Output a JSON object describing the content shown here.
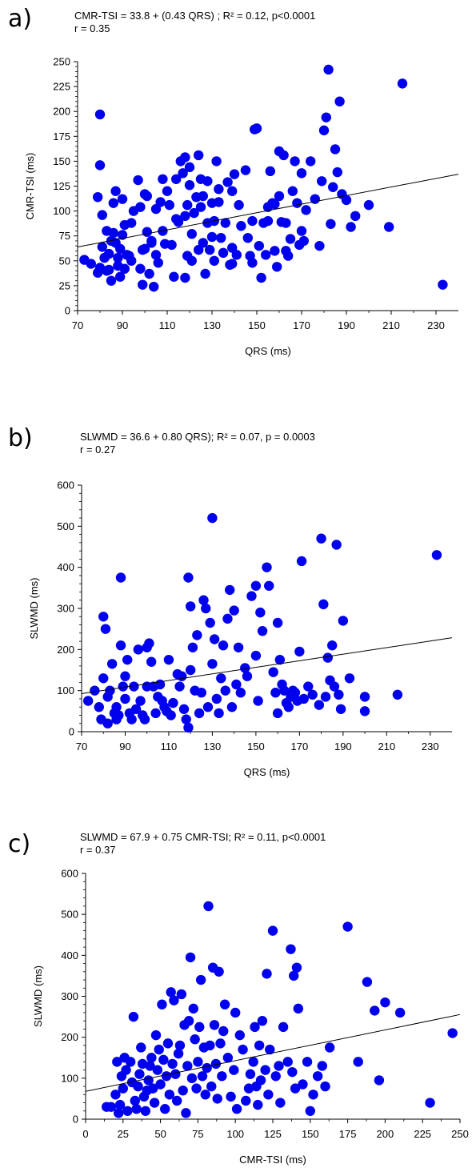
{
  "panels": [
    {
      "label": "a)",
      "equation": "CMR-TSI = 33.8 + (0.43 QRS) ; R² = 0.12, p<0.0001",
      "correlation": "r = 0.35"
    },
    {
      "label": "b)",
      "equation": "SLWMD = 36.6 + 0.80 QRS); R² = 0.07, p = 0.0003",
      "correlation": "r = 0.27"
    },
    {
      "label": "c)",
      "equation": "SLWMD = 67.9 + 0.75 CMR-TSI; R² = 0.11, p<0.0001",
      "correlation": "r = 0.37"
    }
  ],
  "chart_data": [
    {
      "type": "scatter",
      "xlabel": "QRS (ms)",
      "ylabel": "CMR-TSI  (ms)",
      "xlim": [
        70,
        240
      ],
      "ylim": [
        0,
        250
      ],
      "xticks": [
        70,
        90,
        110,
        130,
        150,
        170,
        190,
        210,
        230
      ],
      "yticks": [
        0,
        25,
        50,
        75,
        100,
        125,
        150,
        175,
        200,
        225,
        250
      ],
      "point_color": "#0000ee",
      "trendline": {
        "intercept": 33.8,
        "slope": 0.43,
        "x_from": 70,
        "x_to": 240
      },
      "series": [
        {
          "x": [
            73,
            76,
            79,
            80,
            80,
            81,
            81,
            82,
            83,
            83,
            84,
            85,
            86,
            86,
            87,
            87,
            88,
            89,
            89,
            90,
            90,
            91,
            91,
            92,
            93,
            94,
            95,
            97,
            98,
            99,
            99,
            100,
            100,
            101,
            101,
            102,
            103,
            104,
            105,
            105,
            106,
            107,
            108,
            109,
            110,
            111,
            112,
            113,
            114,
            115,
            116,
            117,
            118,
            118,
            119,
            119,
            120,
            120,
            121,
            121,
            122,
            123,
            124,
            124,
            125,
            126,
            126,
            127,
            128,
            128,
            129,
            130,
            130,
            131,
            131,
            132,
            133,
            134,
            135,
            136,
            137,
            138,
            139,
            139,
            140,
            141,
            142,
            143,
            145,
            146,
            147,
            148,
            149,
            150,
            151,
            152,
            153,
            154,
            155,
            156,
            157,
            158,
            158,
            159,
            160,
            160,
            161,
            162,
            163,
            164,
            165,
            166,
            167,
            168,
            169,
            170,
            171,
            172,
            174,
            176,
            178,
            179,
            180,
            181,
            182,
            183,
            184,
            185,
            186,
            187,
            188,
            190,
            192,
            194,
            200,
            209,
            215,
            233,
            79,
            80,
            84,
            85,
            88,
            94,
            98,
            103,
            108,
            114,
            118,
            125,
            133,
            139,
            148,
            155,
            163,
            170
          ],
          "y": [
            51,
            47,
            114,
            146,
            197,
            96,
            64,
            53,
            80,
            40,
            57,
            30,
            78,
            108,
            120,
            68,
            45,
            34,
            62,
            76,
            112,
            86,
            42,
            56,
            55,
            88,
            100,
            131,
            104,
            26,
            61,
            117,
            62,
            115,
            79,
            37,
            68,
            24,
            56,
            102,
            48,
            109,
            132,
            67,
            120,
            106,
            66,
            34,
            132,
            89,
            150,
            138,
            154,
            33,
            106,
            55,
            126,
            144,
            77,
            50,
            98,
            114,
            156,
            61,
            132,
            68,
            115,
            37,
            130,
            88,
            61,
            108,
            74,
            50,
            90,
            150,
            122,
            73,
            58,
            88,
            129,
            46,
            63,
            120,
            137,
            56,
            106,
            85,
            141,
            73,
            55,
            90,
            182,
            183,
            65,
            33,
            88,
            56,
            104,
            140,
            108,
            60,
            107,
            44,
            160,
            115,
            89,
            156,
            88,
            55,
            72,
            120,
            150,
            108,
            66,
            138,
            70,
            101,
            150,
            112,
            65,
            130,
            181,
            194,
            242,
            87,
            124,
            162,
            139,
            210,
            117,
            111,
            84,
            95,
            106,
            84,
            228,
            26,
            38,
            43,
            41,
            70,
            53,
            50,
            42,
            70,
            80,
            92,
            95,
            104,
            109,
            47,
            48,
            90,
            60,
            80
          ]
        }
      ]
    },
    {
      "type": "scatter",
      "xlabel": "QRS (ms)",
      "ylabel": "SLWMD (ms)",
      "xlim": [
        70,
        240
      ],
      "ylim": [
        0,
        600
      ],
      "xticks": [
        70,
        90,
        110,
        130,
        150,
        170,
        190,
        210,
        230
      ],
      "yticks": [
        0,
        100,
        200,
        300,
        400,
        500,
        600
      ],
      "point_color": "#0000ee",
      "trendline": {
        "intercept": 36.6,
        "slope": 0.8,
        "x_from": 70,
        "x_to": 240
      },
      "series": [
        {
          "x": [
            73,
            76,
            78,
            79,
            80,
            80,
            81,
            82,
            82,
            83,
            84,
            85,
            86,
            86,
            87,
            88,
            88,
            89,
            90,
            90,
            91,
            92,
            93,
            94,
            95,
            96,
            97,
            98,
            99,
            100,
            100,
            101,
            102,
            103,
            104,
            105,
            106,
            107,
            108,
            109,
            110,
            111,
            112,
            114,
            115,
            116,
            117,
            118,
            119,
            119,
            120,
            120,
            121,
            122,
            123,
            124,
            125,
            126,
            127,
            128,
            129,
            130,
            130,
            131,
            132,
            133,
            134,
            135,
            136,
            137,
            138,
            139,
            140,
            141,
            142,
            143,
            145,
            146,
            148,
            150,
            150,
            151,
            152,
            153,
            155,
            156,
            158,
            159,
            160,
            160,
            161,
            162,
            163,
            164,
            165,
            166,
            167,
            168,
            169,
            170,
            171,
            172,
            174,
            176,
            179,
            180,
            181,
            182,
            183,
            184,
            185,
            186,
            187,
            188,
            189,
            190,
            193,
            200,
            200,
            215,
            233
          ],
          "y": [
            75,
            100,
            60,
            30,
            280,
            130,
            250,
            85,
            20,
            100,
            165,
            45,
            30,
            60,
            40,
            210,
            375,
            110,
            135,
            80,
            175,
            45,
            30,
            110,
            55,
            200,
            75,
            40,
            30,
            205,
            110,
            215,
            170,
            110,
            45,
            85,
            115,
            75,
            60,
            50,
            175,
            40,
            70,
            140,
            110,
            135,
            55,
            30,
            375,
            10,
            305,
            150,
            205,
            100,
            235,
            45,
            95,
            320,
            300,
            60,
            265,
            165,
            520,
            225,
            80,
            45,
            130,
            210,
            100,
            275,
            345,
            60,
            295,
            115,
            205,
            95,
            155,
            135,
            330,
            355,
            185,
            75,
            290,
            245,
            400,
            355,
            145,
            95,
            265,
            45,
            175,
            115,
            100,
            70,
            60,
            85,
            100,
            95,
            75,
            195,
            415,
            80,
            110,
            90,
            65,
            470,
            310,
            85,
            180,
            125,
            210,
            110,
            455,
            90,
            55,
            270,
            130,
            85,
            50,
            90,
            430
          ]
        }
      ]
    },
    {
      "type": "scatter",
      "xlabel": "CMR-TSI (ms)",
      "ylabel": "SLWMD (ms)",
      "xlim": [
        0,
        250
      ],
      "ylim": [
        0,
        600
      ],
      "xticks": [
        0,
        25,
        50,
        75,
        100,
        125,
        150,
        175,
        200,
        225,
        250
      ],
      "yticks": [
        0,
        100,
        200,
        300,
        400,
        500,
        600
      ],
      "point_color": "#0000ee",
      "trendline": {
        "intercept": 67.9,
        "slope": 0.75,
        "x_from": 0,
        "x_to": 250
      },
      "series": [
        {
          "x": [
            14,
            17,
            20,
            21,
            22,
            23,
            24,
            25,
            26,
            27,
            28,
            30,
            31,
            32,
            33,
            34,
            35,
            36,
            37,
            38,
            39,
            40,
            41,
            42,
            43,
            44,
            45,
            46,
            47,
            48,
            49,
            50,
            51,
            52,
            53,
            54,
            55,
            56,
            57,
            58,
            59,
            60,
            61,
            62,
            63,
            64,
            65,
            66,
            67,
            68,
            69,
            70,
            71,
            72,
            73,
            74,
            75,
            76,
            77,
            78,
            79,
            80,
            81,
            82,
            83,
            84,
            85,
            86,
            87,
            88,
            89,
            90,
            91,
            92,
            93,
            95,
            97,
            99,
            100,
            101,
            103,
            105,
            107,
            109,
            110,
            112,
            113,
            114,
            115,
            116,
            117,
            118,
            120,
            121,
            122,
            123,
            125,
            127,
            129,
            130,
            132,
            135,
            137,
            138,
            139,
            140,
            141,
            142,
            145,
            148,
            150,
            152,
            155,
            158,
            160,
            163,
            175,
            182,
            188,
            193,
            196,
            200,
            210,
            230,
            245
          ],
          "y": [
            30,
            30,
            60,
            140,
            15,
            35,
            105,
            75,
            150,
            120,
            20,
            140,
            90,
            250,
            45,
            25,
            80,
            110,
            175,
            135,
            55,
            20,
            70,
            95,
            130,
            150,
            75,
            40,
            205,
            120,
            170,
            85,
            280,
            145,
            25,
            105,
            185,
            60,
            310,
            135,
            290,
            110,
            45,
            160,
            180,
            305,
            70,
            230,
            15,
            130,
            240,
            395,
            100,
            270,
            195,
            75,
            140,
            225,
            340,
            105,
            175,
            60,
            125,
            520,
            180,
            80,
            370,
            230,
            135,
            50,
            360,
            185,
            105,
            215,
            280,
            150,
            55,
            120,
            260,
            25,
            205,
            170,
            45,
            75,
            110,
            140,
            225,
            80,
            35,
            180,
            95,
            240,
            120,
            355,
            60,
            170,
            460,
            105,
            130,
            40,
            225,
            140,
            415,
            115,
            350,
            75,
            370,
            270,
            85,
            140,
            20,
            60,
            105,
            130,
            80,
            175,
            470,
            140,
            335,
            265,
            95,
            285,
            260,
            40,
            210
          ]
        }
      ]
    }
  ]
}
